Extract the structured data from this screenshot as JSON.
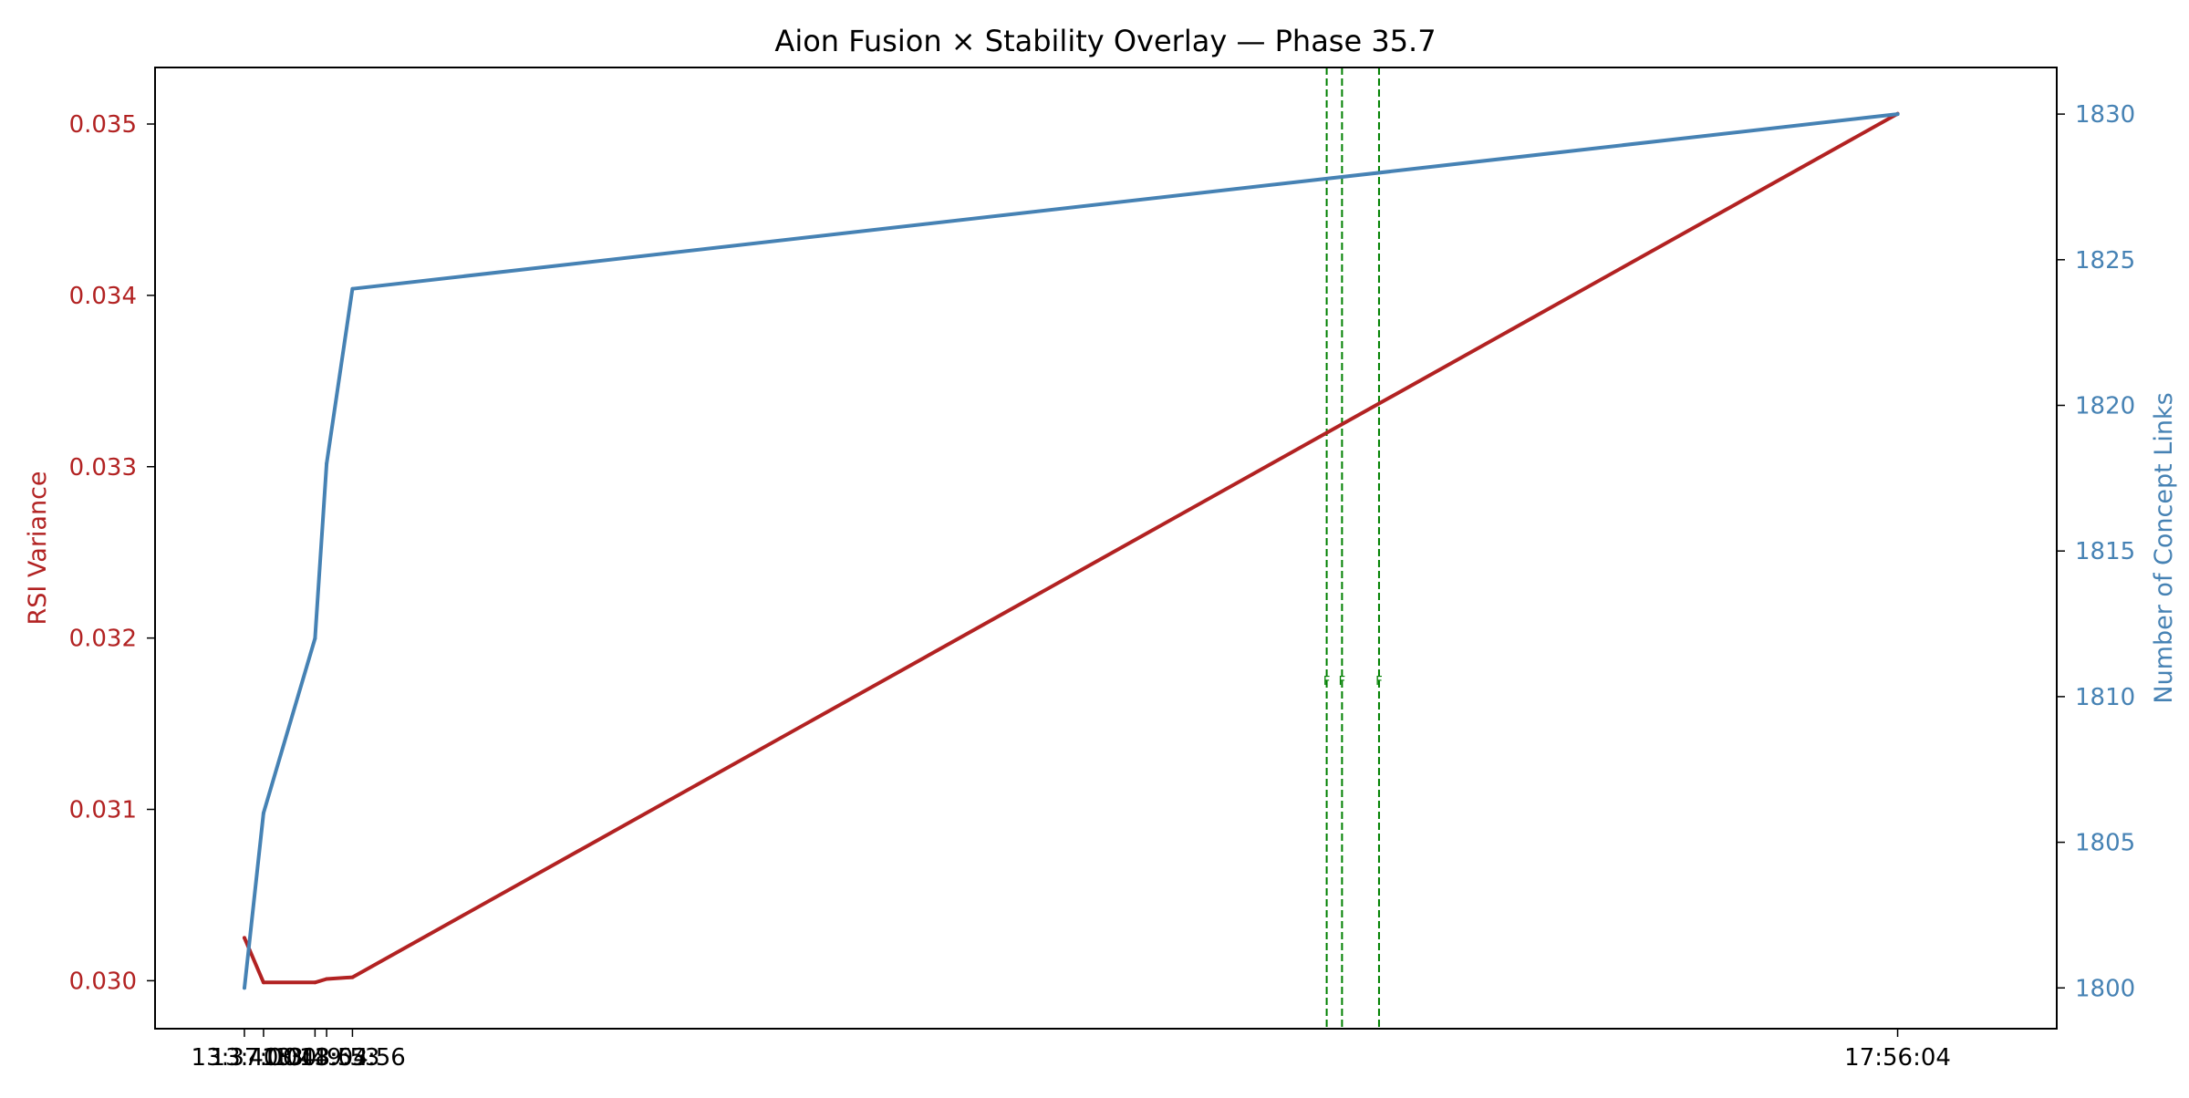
{
  "chart_data": {
    "type": "line",
    "title": "Aion Fusion × Stability Overlay — Phase 35.7",
    "x_tick_labels": [
      "13:37:00",
      "13:40:00",
      "13:48:04",
      "13:49:53",
      "13:53:56",
      "17:56:04"
    ],
    "x_tick_minutes": [
      0,
      3,
      11.0667,
      12.8833,
      16.9333,
      259.0667
    ],
    "xlim": [
      -14,
      284
    ],
    "left_axis": {
      "label": "RSI Variance",
      "color": "#b22222",
      "ylim": [
        0.02972,
        0.03533
      ],
      "ticks": [
        "0.030",
        "0.031",
        "0.032",
        "0.033",
        "0.034",
        "0.035"
      ],
      "tick_values": [
        0.03,
        0.031,
        0.032,
        0.033,
        0.034,
        0.035
      ]
    },
    "right_axis": {
      "label": "Number of Concept Links",
      "color": "#4682b4",
      "ylim": [
        1798.6,
        1831.6
      ],
      "ticks": [
        "1800",
        "1805",
        "1810",
        "1815",
        "1820",
        "1825",
        "1830"
      ],
      "tick_values": [
        1800,
        1805,
        1810,
        1815,
        1820,
        1825,
        1830
      ]
    },
    "series": [
      {
        "axis": "left",
        "color": "#b22222",
        "x": [
          0,
          3,
          11.0667,
          12.8833,
          16.9333,
          259.0667
        ],
        "y": [
          0.03025,
          0.02999,
          0.02999,
          0.03001,
          0.03002,
          0.03506
        ]
      },
      {
        "axis": "right",
        "color": "#4682b4",
        "x": [
          0,
          3,
          11.0667,
          12.8833,
          16.9333,
          259.0667
        ],
        "y": [
          1800,
          1806,
          1812,
          1818,
          1824,
          1830
        ]
      }
    ],
    "event_markers": {
      "color": "#008000",
      "style": "dashed",
      "x": [
        169.6,
        172.0,
        177.8
      ],
      "label_y_right": 1810.4,
      "labels": [
        "F",
        "F",
        "F"
      ]
    },
    "grid": false,
    "legend": "none"
  }
}
